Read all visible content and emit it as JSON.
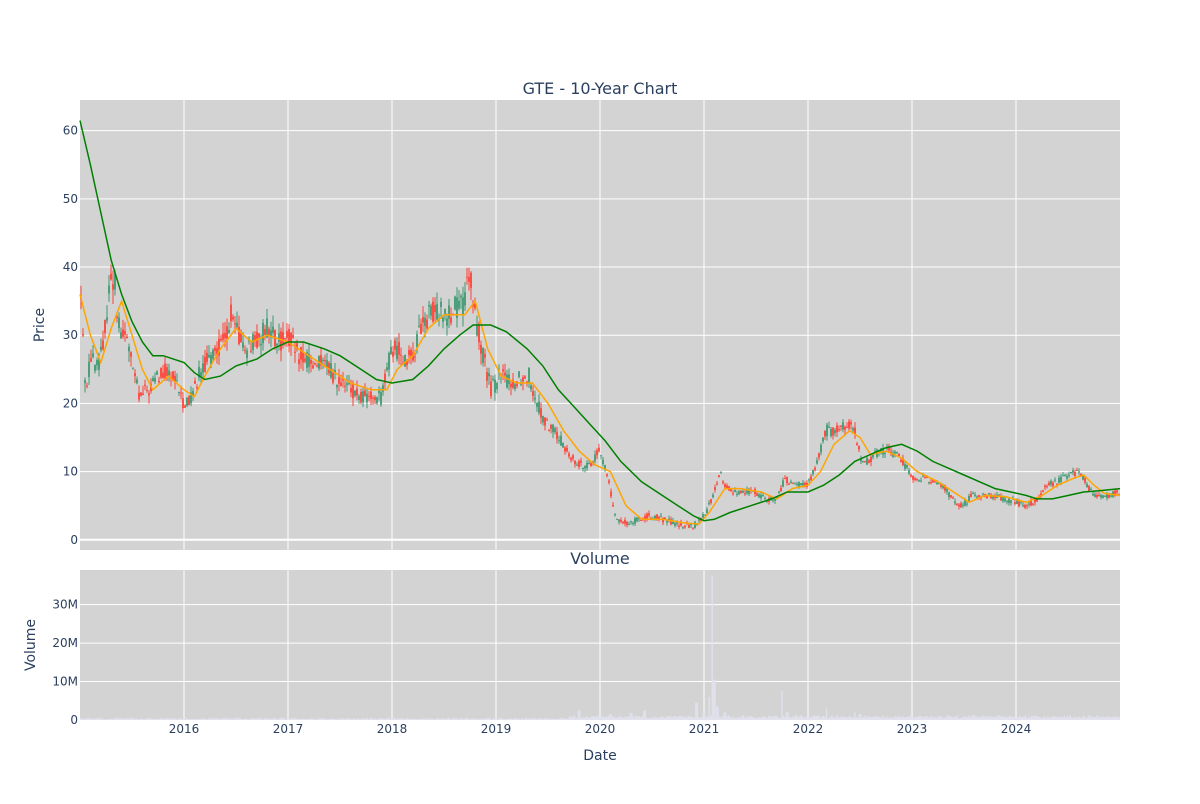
{
  "chart_data": {
    "type": "candlestick",
    "title": "GTE - 10-Year Chart",
    "colors": {
      "background": "#d3d3d3",
      "grid": "#ffffff",
      "up": "#3d9970",
      "down": "#ff4136",
      "ma_short": "#ffa500",
      "ma_long": "#008000",
      "volume": "#e1e1ee"
    },
    "price_panel": {
      "ylabel": "Price",
      "ylim": [
        -1.5,
        64.5
      ],
      "yticks": [
        0,
        10,
        20,
        30,
        40,
        50,
        60
      ],
      "ytick_labels": [
        "0",
        "10",
        "20",
        "30",
        "40",
        "50",
        "60"
      ]
    },
    "volume_panel": {
      "title": "Volume",
      "ylabel": "Volume",
      "ylim": [
        0,
        39
      ],
      "yticks": [
        0,
        10,
        20,
        30
      ],
      "ytick_labels": [
        "0",
        "10M",
        "20M",
        "30M"
      ]
    },
    "x_axis": {
      "xlabel": "Date",
      "xlim": [
        2015.0,
        2025.0
      ],
      "ticks": [
        2016,
        2017,
        2018,
        2019,
        2020,
        2021,
        2022,
        2023,
        2024
      ],
      "tick_labels": [
        "2016",
        "2017",
        "2018",
        "2019",
        "2020",
        "2021",
        "2022",
        "2023",
        "2024"
      ]
    },
    "price_path": [
      [
        2015.0,
        38
      ],
      [
        2015.03,
        29
      ],
      [
        2015.06,
        21
      ],
      [
        2015.1,
        27
      ],
      [
        2015.15,
        25
      ],
      [
        2015.22,
        28
      ],
      [
        2015.28,
        37
      ],
      [
        2015.33,
        39
      ],
      [
        2015.38,
        30
      ],
      [
        2015.45,
        30
      ],
      [
        2015.52,
        24
      ],
      [
        2015.58,
        21
      ],
      [
        2015.65,
        22
      ],
      [
        2015.72,
        23
      ],
      [
        2015.8,
        25
      ],
      [
        2015.88,
        24
      ],
      [
        2015.95,
        22
      ],
      [
        2016.0,
        20
      ],
      [
        2016.08,
        21
      ],
      [
        2016.15,
        25
      ],
      [
        2016.22,
        26
      ],
      [
        2016.3,
        28
      ],
      [
        2016.38,
        29
      ],
      [
        2016.45,
        33
      ],
      [
        2016.52,
        30
      ],
      [
        2016.6,
        28
      ],
      [
        2016.7,
        29
      ],
      [
        2016.8,
        31
      ],
      [
        2016.9,
        29
      ],
      [
        2017.0,
        30
      ],
      [
        2017.1,
        27
      ],
      [
        2017.2,
        26
      ],
      [
        2017.3,
        26
      ],
      [
        2017.4,
        25
      ],
      [
        2017.5,
        23
      ],
      [
        2017.6,
        22
      ],
      [
        2017.7,
        21
      ],
      [
        2017.8,
        21
      ],
      [
        2017.9,
        21
      ],
      [
        2018.0,
        28
      ],
      [
        2018.08,
        28
      ],
      [
        2018.15,
        26
      ],
      [
        2018.22,
        28
      ],
      [
        2018.3,
        32
      ],
      [
        2018.38,
        33
      ],
      [
        2018.46,
        34
      ],
      [
        2018.55,
        33
      ],
      [
        2018.62,
        34
      ],
      [
        2018.7,
        35
      ],
      [
        2018.75,
        39
      ],
      [
        2018.8,
        33
      ],
      [
        2018.88,
        27
      ],
      [
        2018.95,
        22
      ],
      [
        2019.05,
        24
      ],
      [
        2019.15,
        23
      ],
      [
        2019.25,
        24
      ],
      [
        2019.32,
        24
      ],
      [
        2019.4,
        20
      ],
      [
        2019.48,
        17
      ],
      [
        2019.55,
        16
      ],
      [
        2019.65,
        14
      ],
      [
        2019.72,
        12
      ],
      [
        2019.8,
        11
      ],
      [
        2019.9,
        11
      ],
      [
        2020.0,
        13
      ],
      [
        2020.08,
        9
      ],
      [
        2020.15,
        3
      ],
      [
        2020.22,
        2.5
      ],
      [
        2020.3,
        2.6
      ],
      [
        2020.4,
        3.2
      ],
      [
        2020.5,
        3.5
      ],
      [
        2020.6,
        3.0
      ],
      [
        2020.7,
        2.6
      ],
      [
        2020.8,
        2.2
      ],
      [
        2020.9,
        2.0
      ],
      [
        2021.0,
        3.5
      ],
      [
        2021.05,
        5
      ],
      [
        2021.1,
        7
      ],
      [
        2021.15,
        10
      ],
      [
        2021.2,
        8
      ],
      [
        2021.3,
        7
      ],
      [
        2021.4,
        7
      ],
      [
        2021.5,
        7
      ],
      [
        2021.6,
        6
      ],
      [
        2021.7,
        6
      ],
      [
        2021.78,
        9
      ],
      [
        2021.85,
        8
      ],
      [
        2021.92,
        8
      ],
      [
        2022.0,
        8
      ],
      [
        2022.1,
        12
      ],
      [
        2022.18,
        16
      ],
      [
        2022.28,
        16
      ],
      [
        2022.38,
        17
      ],
      [
        2022.45,
        16
      ],
      [
        2022.52,
        11
      ],
      [
        2022.6,
        12
      ],
      [
        2022.7,
        13
      ],
      [
        2022.8,
        13
      ],
      [
        2022.9,
        12
      ],
      [
        2023.0,
        9
      ],
      [
        2023.1,
        9
      ],
      [
        2023.2,
        8.5
      ],
      [
        2023.3,
        8
      ],
      [
        2023.38,
        6
      ],
      [
        2023.48,
        5
      ],
      [
        2023.58,
        6.5
      ],
      [
        2023.7,
        6.5
      ],
      [
        2023.8,
        6.5
      ],
      [
        2023.9,
        6
      ],
      [
        2024.0,
        5.5
      ],
      [
        2024.1,
        5
      ],
      [
        2024.2,
        6
      ],
      [
        2024.3,
        8
      ],
      [
        2024.4,
        8.5
      ],
      [
        2024.5,
        9.5
      ],
      [
        2024.58,
        9.8
      ],
      [
        2024.65,
        9
      ],
      [
        2024.72,
        7
      ],
      [
        2024.8,
        6.5
      ],
      [
        2024.9,
        6.5
      ],
      [
        2025.0,
        7
      ]
    ],
    "ma_short": [
      [
        2015.0,
        36
      ],
      [
        2015.1,
        30
      ],
      [
        2015.2,
        26
      ],
      [
        2015.3,
        31
      ],
      [
        2015.4,
        35
      ],
      [
        2015.5,
        30
      ],
      [
        2015.6,
        25
      ],
      [
        2015.7,
        22
      ],
      [
        2015.85,
        24
      ],
      [
        2016.0,
        22
      ],
      [
        2016.1,
        21
      ],
      [
        2016.2,
        24
      ],
      [
        2016.35,
        28
      ],
      [
        2016.5,
        31
      ],
      [
        2016.65,
        29
      ],
      [
        2016.8,
        30
      ],
      [
        2017.0,
        29
      ],
      [
        2017.2,
        27
      ],
      [
        2017.4,
        25
      ],
      [
        2017.6,
        23
      ],
      [
        2017.8,
        22
      ],
      [
        2017.95,
        22
      ],
      [
        2018.05,
        25
      ],
      [
        2018.2,
        27
      ],
      [
        2018.35,
        31
      ],
      [
        2018.5,
        33
      ],
      [
        2018.7,
        33
      ],
      [
        2018.8,
        35
      ],
      [
        2018.92,
        28
      ],
      [
        2019.05,
        24
      ],
      [
        2019.2,
        23
      ],
      [
        2019.35,
        23
      ],
      [
        2019.5,
        20
      ],
      [
        2019.65,
        16
      ],
      [
        2019.8,
        13
      ],
      [
        2019.95,
        11
      ],
      [
        2020.1,
        10
      ],
      [
        2020.25,
        5
      ],
      [
        2020.4,
        3
      ],
      [
        2020.6,
        3
      ],
      [
        2020.8,
        2.5
      ],
      [
        2020.95,
        2.3
      ],
      [
        2021.05,
        4
      ],
      [
        2021.2,
        7.5
      ],
      [
        2021.35,
        7.5
      ],
      [
        2021.55,
        7
      ],
      [
        2021.7,
        6
      ],
      [
        2021.85,
        7.5
      ],
      [
        2022.0,
        8
      ],
      [
        2022.12,
        10
      ],
      [
        2022.25,
        14
      ],
      [
        2022.4,
        16
      ],
      [
        2022.5,
        15
      ],
      [
        2022.6,
        12.5
      ],
      [
        2022.75,
        13
      ],
      [
        2022.9,
        12
      ],
      [
        2023.05,
        10
      ],
      [
        2023.25,
        8.5
      ],
      [
        2023.4,
        7
      ],
      [
        2023.55,
        5.5
      ],
      [
        2023.7,
        6.5
      ],
      [
        2023.9,
        6.3
      ],
      [
        2024.1,
        5.5
      ],
      [
        2024.25,
        6.5
      ],
      [
        2024.4,
        8
      ],
      [
        2024.55,
        9
      ],
      [
        2024.65,
        9.5
      ],
      [
        2024.75,
        8
      ],
      [
        2024.85,
        6.8
      ],
      [
        2025.0,
        6.5
      ]
    ],
    "ma_long": [
      [
        2015.0,
        61.5
      ],
      [
        2015.1,
        55
      ],
      [
        2015.2,
        48
      ],
      [
        2015.3,
        41
      ],
      [
        2015.4,
        36
      ],
      [
        2015.5,
        32
      ],
      [
        2015.6,
        29
      ],
      [
        2015.7,
        27
      ],
      [
        2015.8,
        27
      ],
      [
        2016.0,
        26
      ],
      [
        2016.1,
        24.5
      ],
      [
        2016.2,
        23.5
      ],
      [
        2016.35,
        24
      ],
      [
        2016.5,
        25.5
      ],
      [
        2016.7,
        26.5
      ],
      [
        2016.85,
        28
      ],
      [
        2017.0,
        29
      ],
      [
        2017.15,
        29
      ],
      [
        2017.35,
        28
      ],
      [
        2017.5,
        27
      ],
      [
        2017.7,
        25
      ],
      [
        2017.85,
        23.5
      ],
      [
        2018.0,
        23
      ],
      [
        2018.2,
        23.5
      ],
      [
        2018.35,
        25.5
      ],
      [
        2018.5,
        28
      ],
      [
        2018.65,
        30
      ],
      [
        2018.78,
        31.5
      ],
      [
        2018.95,
        31.5
      ],
      [
        2019.1,
        30.5
      ],
      [
        2019.3,
        28
      ],
      [
        2019.45,
        25.5
      ],
      [
        2019.6,
        22
      ],
      [
        2019.75,
        19.5
      ],
      [
        2019.9,
        17
      ],
      [
        2020.05,
        14.5
      ],
      [
        2020.2,
        11.5
      ],
      [
        2020.4,
        8.5
      ],
      [
        2020.6,
        6.5
      ],
      [
        2020.75,
        5
      ],
      [
        2020.9,
        3.5
      ],
      [
        2021.0,
        2.8
      ],
      [
        2021.1,
        3.0
      ],
      [
        2021.25,
        4
      ],
      [
        2021.45,
        5
      ],
      [
        2021.65,
        6
      ],
      [
        2021.8,
        7
      ],
      [
        2022.0,
        7
      ],
      [
        2022.15,
        8
      ],
      [
        2022.3,
        9.5
      ],
      [
        2022.45,
        11.5
      ],
      [
        2022.6,
        12.5
      ],
      [
        2022.75,
        13.5
      ],
      [
        2022.9,
        14
      ],
      [
        2023.05,
        13
      ],
      [
        2023.2,
        11.5
      ],
      [
        2023.35,
        10.5
      ],
      [
        2023.5,
        9.5
      ],
      [
        2023.65,
        8.5
      ],
      [
        2023.8,
        7.5
      ],
      [
        2023.95,
        7
      ],
      [
        2024.1,
        6.5
      ],
      [
        2024.2,
        6
      ],
      [
        2024.35,
        6
      ],
      [
        2024.5,
        6.5
      ],
      [
        2024.65,
        7
      ],
      [
        2024.8,
        7.2
      ],
      [
        2025.0,
        7.5
      ]
    ],
    "volume_spikes": [
      [
        2019.8,
        2.5
      ],
      [
        2020.1,
        1.5
      ],
      [
        2020.3,
        1.8
      ],
      [
        2020.43,
        2.5
      ],
      [
        2020.93,
        4.5
      ],
      [
        2021.0,
        2.5
      ],
      [
        2021.05,
        6
      ],
      [
        2021.08,
        37.5
      ],
      [
        2021.1,
        10.5
      ],
      [
        2021.13,
        3.5
      ],
      [
        2021.2,
        2
      ],
      [
        2021.75,
        7.5
      ],
      [
        2021.8,
        2
      ],
      [
        2022.18,
        3
      ],
      [
        2022.45,
        2
      ],
      [
        2022.5,
        1.5
      ],
      [
        2023.35,
        1.2
      ],
      [
        2023.6,
        1.0
      ],
      [
        2024.2,
        1.0
      ]
    ]
  }
}
